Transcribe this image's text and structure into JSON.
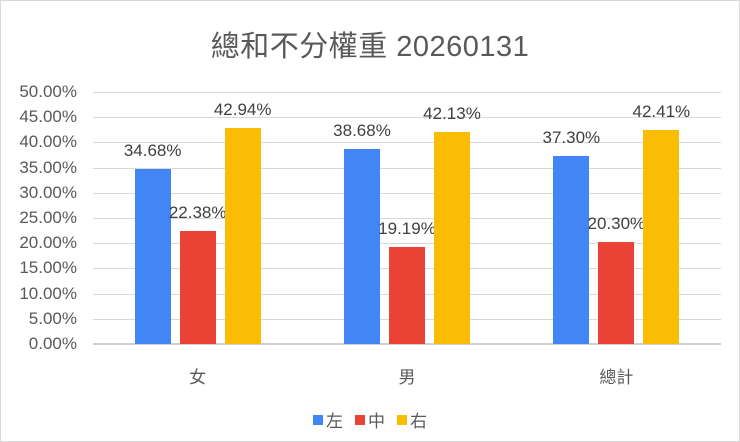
{
  "chart_data": {
    "type": "bar",
    "title": "總和不分權重 20260131",
    "categories": [
      "女",
      "男",
      "總計"
    ],
    "series": [
      {
        "name": "左",
        "color": "#4285F4",
        "values": [
          34.68,
          38.68,
          37.3
        ],
        "labels": [
          "34.68%",
          "38.68%",
          "37.30%"
        ]
      },
      {
        "name": "中",
        "color": "#EA4335",
        "values": [
          22.38,
          19.19,
          20.3
        ],
        "labels": [
          "22.38%",
          "19.19%",
          "20.30%"
        ]
      },
      {
        "name": "右",
        "color": "#FBBC04",
        "values": [
          42.94,
          42.13,
          42.41
        ],
        "labels": [
          "42.94%",
          "42.13%",
          "42.41%"
        ]
      }
    ],
    "xlabel": "",
    "ylabel": "",
    "ylim": [
      0,
      50
    ],
    "yticks": [
      "0.00%",
      "5.00%",
      "10.00%",
      "15.00%",
      "20.00%",
      "25.00%",
      "30.00%",
      "35.00%",
      "40.00%",
      "45.00%",
      "50.00%"
    ],
    "grid": true,
    "legend_position": "bottom"
  }
}
